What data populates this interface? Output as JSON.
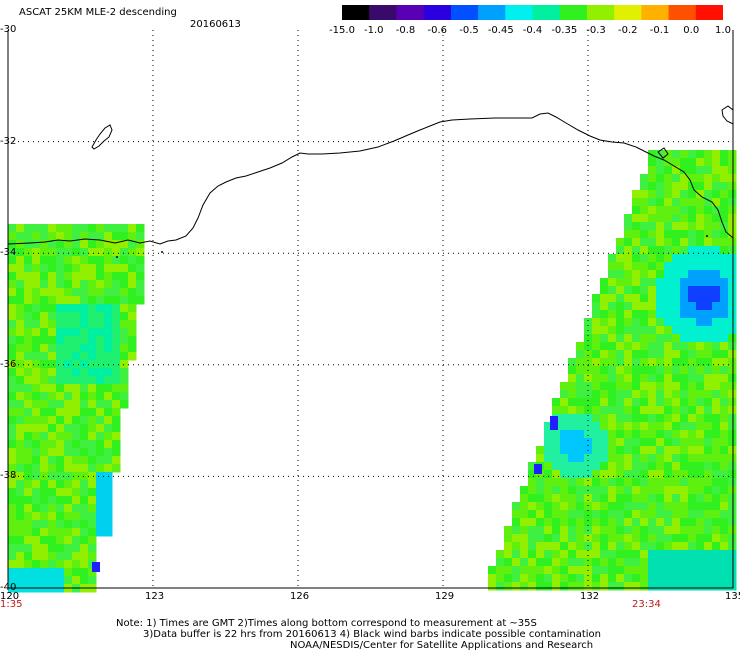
{
  "header": {
    "title": "ASCAT 25KM MLE-2 descending",
    "date": "20160613"
  },
  "colorbar": {
    "labels": [
      "-15.0",
      "-1.0",
      "-0.8",
      "-0.6",
      "-0.5",
      "-0.45",
      "-0.4",
      "-0.35",
      "-0.3",
      "-0.2",
      "-0.1",
      "0.0",
      "1.0"
    ],
    "colors": [
      "#000000",
      "#3a0a6a",
      "#5a00b4",
      "#2a00e0",
      "#0050ff",
      "#00a0ff",
      "#00f0f0",
      "#00f0a0",
      "#30f020",
      "#90f000",
      "#e0f000",
      "#ffb000",
      "#ff5000",
      "#ff1000"
    ]
  },
  "axes": {
    "lon_ticks": [
      "120",
      "123",
      "126",
      "129",
      "132",
      "135"
    ],
    "lat_ticks": [
      "-30",
      "-32",
      "-34",
      "-36",
      "-38",
      "-40"
    ]
  },
  "time_labels": {
    "left": "1:35",
    "right": "23:34"
  },
  "notes": {
    "line1": "Note: 1) Times are GMT 2)Times along bottom correspond to measurement at ~35S",
    "line2": "3)Data buffer is 22 hrs from 20160613 4) Black wind barbs indicate possible contamination",
    "line3": "NOAA/NESDIS/Center for Satellite Applications and Research"
  }
}
